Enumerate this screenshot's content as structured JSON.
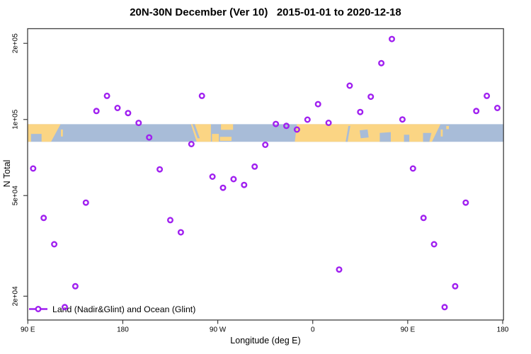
{
  "window": {
    "title": "20N-30N December (Ver 10)   2015-01-01 to 2020-12-18"
  },
  "colors": {
    "point": "#A020F0",
    "land": "#FBD584",
    "ocean": "#A8BCD8",
    "axis": "#3f3f3f",
    "text": "#000000"
  },
  "chart_data": {
    "type": "scatter",
    "title": "20N-30N December (Ver 10)   2015-01-01 to 2020-12-18",
    "xlabel": "Longitude (deg E)",
    "ylabel": "N Total",
    "x_axis": {
      "note": "longitude plotted continuously from 90E eastward across 450 degrees",
      "range": [
        90,
        540
      ],
      "ticks": [
        {
          "pos": 90,
          "label": "90 E"
        },
        {
          "pos": 180,
          "label": "180"
        },
        {
          "pos": 270,
          "label": "90 W"
        },
        {
          "pos": 360,
          "label": "0"
        },
        {
          "pos": 450,
          "label": "90 E"
        },
        {
          "pos": 540,
          "label": "180"
        }
      ]
    },
    "y_axis": {
      "scale": "log",
      "range": [
        16100,
        228600
      ],
      "ticks": [
        {
          "value": 20000,
          "label": "2e+04"
        },
        {
          "value": 50000,
          "label": "5e+04"
        },
        {
          "value": 100000,
          "label": "1e+05"
        },
        {
          "value": 200000,
          "label": "2e+05"
        }
      ]
    },
    "legend": {
      "position": "bottom-left",
      "label": "Land (Nadir&Glint) and Ocean (Glint)"
    },
    "series": [
      {
        "name": "Land (Nadir&Glint) and Ocean (Glint)",
        "marker": "open-circle",
        "color": "#A020F0",
        "points": [
          [
            95,
            64000
          ],
          [
            105,
            40800
          ],
          [
            115,
            32100
          ],
          [
            125,
            18100
          ],
          [
            135,
            21900
          ],
          [
            145,
            46900
          ],
          [
            155,
            108000
          ],
          [
            165,
            124000
          ],
          [
            175,
            111000
          ],
          [
            185,
            106000
          ],
          [
            195,
            96900
          ],
          [
            205,
            84900
          ],
          [
            215,
            63500
          ],
          [
            225,
            40000
          ],
          [
            235,
            35800
          ],
          [
            245,
            79900
          ],
          [
            255,
            124000
          ],
          [
            265,
            59400
          ],
          [
            275,
            53700
          ],
          [
            285,
            58100
          ],
          [
            295,
            55100
          ],
          [
            305,
            65100
          ],
          [
            315,
            79400
          ],
          [
            325,
            96000
          ],
          [
            335,
            94300
          ],
          [
            345,
            91200
          ],
          [
            355,
            99800
          ],
          [
            365,
            115000
          ],
          [
            375,
            97000
          ],
          [
            385,
            25500
          ],
          [
            395,
            136000
          ],
          [
            405,
            107000
          ],
          [
            415,
            123000
          ],
          [
            425,
            167000
          ],
          [
            435,
            208000
          ],
          [
            445,
            100000
          ],
          [
            455,
            64000
          ],
          [
            465,
            40800
          ],
          [
            475,
            32100
          ],
          [
            485,
            18100
          ],
          [
            495,
            21900
          ],
          [
            505,
            46900
          ],
          [
            515,
            108000
          ],
          [
            525,
            124000
          ],
          [
            535,
            111000
          ]
        ]
      }
    ],
    "map_band": {
      "kind": "world-map strip of the 20N-30N latitude band",
      "value_top": 95800,
      "value_bottom": 81600,
      "ocean_color": "#A8BCD8",
      "land_color": "#FBD584",
      "land_polygons": [
        {
          "name": "asia-east",
          "pts": [
            [
              90,
              0
            ],
            [
              121,
              0
            ],
            [
              112,
              1
            ],
            [
              103,
              1
            ],
            [
              103,
              0.55
            ],
            [
              93,
              0.55
            ],
            [
              93,
              1
            ],
            [
              90,
              1
            ]
          ]
        },
        {
          "name": "taiwan",
          "pts": [
            [
              121.3,
              0.3
            ],
            [
              123.2,
              0.3
            ],
            [
              123.2,
              0.7
            ],
            [
              121.3,
              0.7
            ]
          ]
        },
        {
          "name": "mexico",
          "pts": [
            [
              244.5,
              0
            ],
            [
              263.5,
              0
            ],
            [
              263.5,
              1
            ],
            [
              250,
              1
            ]
          ]
        },
        {
          "name": "yucatan",
          "pts": [
            [
              264.5,
              0.55
            ],
            [
              271,
              0.55
            ],
            [
              271,
              1
            ],
            [
              264.5,
              1
            ]
          ]
        },
        {
          "name": "cuba",
          "pts": [
            [
              272,
              0.72
            ],
            [
              283,
              0.72
            ],
            [
              283,
              0.95
            ],
            [
              272,
              0.95
            ]
          ]
        },
        {
          "name": "florida-bahamas",
          "pts": [
            [
              273,
              0
            ],
            [
              284.5,
              0
            ],
            [
              284.5,
              0.32
            ],
            [
              273,
              0.32
            ]
          ]
        },
        {
          "name": "africa-arabia-sasia",
          "pts": [
            [
              345,
              0
            ],
            [
              481,
              0
            ],
            [
              473,
              1
            ],
            [
              343,
              1
            ]
          ]
        },
        {
          "name": "taiwan-repeat",
          "pts": [
            [
              481.3,
              0.3
            ],
            [
              483.2,
              0.3
            ],
            [
              483.2,
              0.7
            ],
            [
              481.3,
              0.7
            ]
          ]
        },
        {
          "name": "ryukyu",
          "pts": [
            [
              486.5,
              0.1
            ],
            [
              489,
              0.1
            ],
            [
              489,
              0.28
            ],
            [
              486.5,
              0.28
            ]
          ]
        }
      ],
      "ocean_patches": [
        {
          "name": "gulf-of-california",
          "pts": [
            [
              246,
              0
            ],
            [
              248.2,
              0
            ],
            [
              253,
              0.8
            ],
            [
              250.8,
              0.8
            ]
          ]
        },
        {
          "name": "red-sea",
          "pts": [
            [
              391.2,
              1
            ],
            [
              393.8,
              0.1
            ],
            [
              395.6,
              0.1
            ],
            [
              393,
              1
            ]
          ]
        },
        {
          "name": "persian-gulf",
          "pts": [
            [
              404.5,
              0.35
            ],
            [
              412,
              0.3
            ],
            [
              413,
              0.75
            ],
            [
              405.5,
              0.8
            ]
          ]
        },
        {
          "name": "arabian-sea",
          "pts": [
            [
              423.5,
              0.5
            ],
            [
              434,
              0.45
            ],
            [
              434,
              1
            ],
            [
              423.5,
              1
            ]
          ]
        },
        {
          "name": "bay-of-bengal",
          "pts": [
            [
              446.5,
              0.6
            ],
            [
              451.5,
              0.6
            ],
            [
              451.5,
              1
            ],
            [
              446.5,
              1
            ]
          ]
        },
        {
          "name": "south-china-sea",
          "pts": [
            [
              464.5,
              0.5
            ],
            [
              472.5,
              0.5
            ],
            [
              470.5,
              1
            ],
            [
              464.5,
              1
            ]
          ]
        }
      ]
    }
  }
}
